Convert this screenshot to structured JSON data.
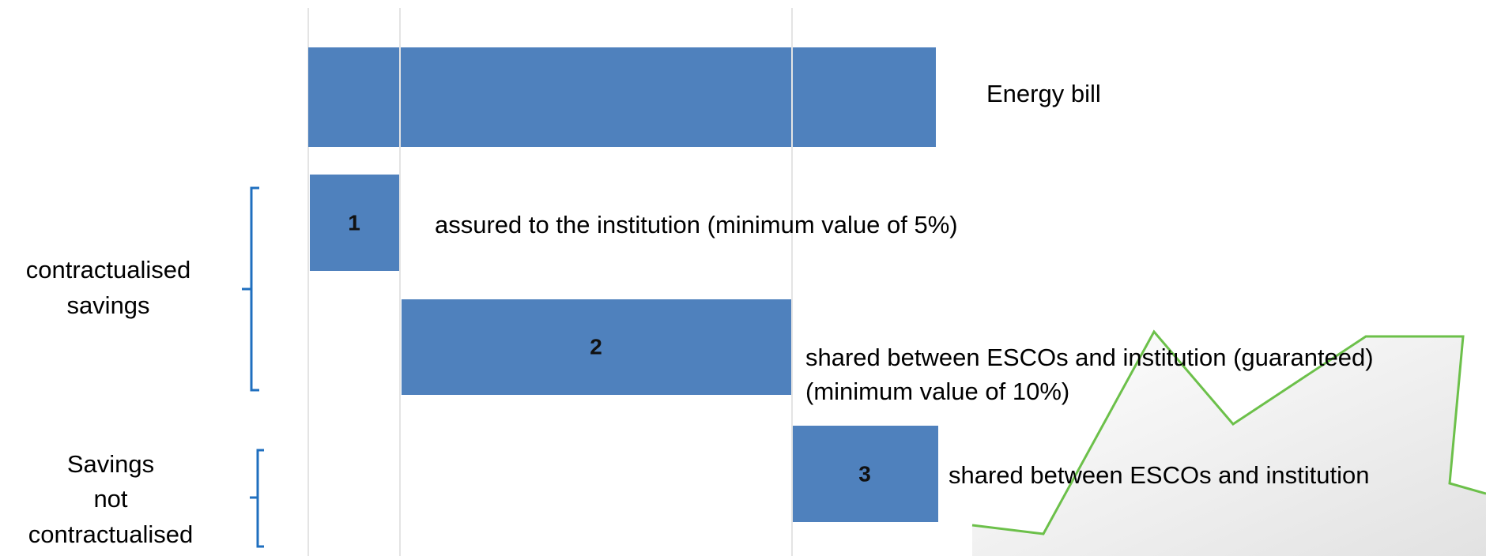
{
  "rows": [
    {
      "bar": "",
      "label": "Energy bill"
    },
    {
      "bar": "1",
      "label": "assured to the institution (minimum value of 5%)"
    },
    {
      "bar": "2",
      "label": [
        "shared between ESCOs and institution (guaranteed)",
        "(minimum value of 10%)"
      ]
    },
    {
      "bar": "3",
      "label": "shared between ESCOs and institution"
    }
  ],
  "groups": [
    {
      "label": [
        "contractualised",
        "savings"
      ]
    },
    {
      "label": [
        "Savings",
        "not",
        "contractualised"
      ]
    }
  ]
}
